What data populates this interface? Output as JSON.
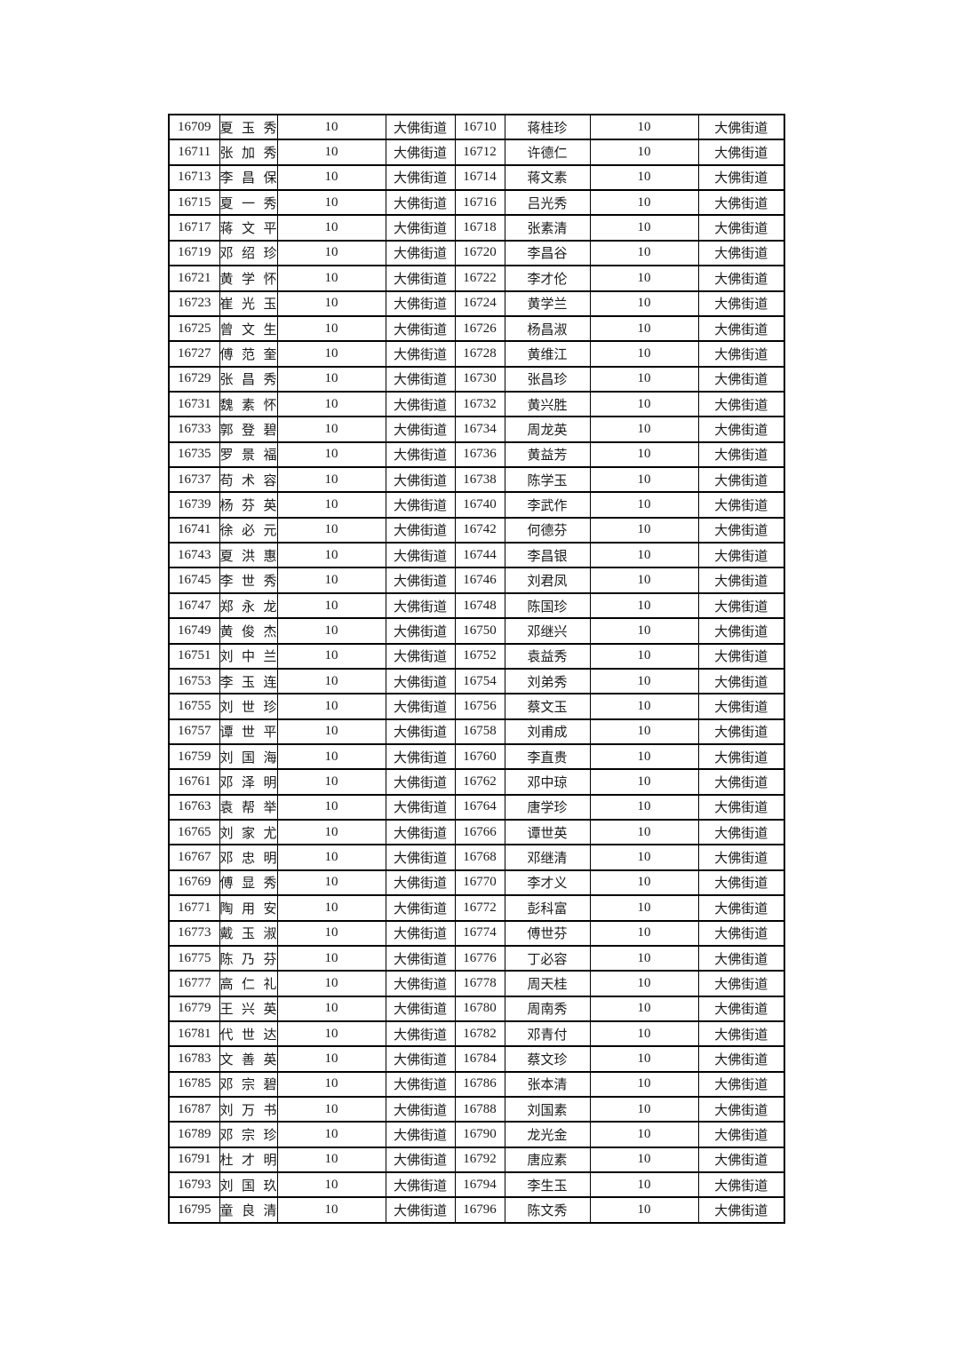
{
  "page": {
    "background_color": "#ffffff",
    "text_color": "#1b1b1b",
    "border_color": "#000000"
  },
  "table": {
    "rows": [
      [
        "16709",
        "夏玉秀",
        "10",
        "大佛街道",
        "16710",
        "蒋桂珍",
        "10",
        "大佛街道"
      ],
      [
        "16711",
        "张加秀",
        "10",
        "大佛街道",
        "16712",
        "许德仁",
        "10",
        "大佛街道"
      ],
      [
        "16713",
        "李昌保",
        "10",
        "大佛街道",
        "16714",
        "蒋文素",
        "10",
        "大佛街道"
      ],
      [
        "16715",
        "夏一秀",
        "10",
        "大佛街道",
        "16716",
        "吕光秀",
        "10",
        "大佛街道"
      ],
      [
        "16717",
        "蒋文平",
        "10",
        "大佛街道",
        "16718",
        "张素清",
        "10",
        "大佛街道"
      ],
      [
        "16719",
        "邓绍珍",
        "10",
        "大佛街道",
        "16720",
        "李昌谷",
        "10",
        "大佛街道"
      ],
      [
        "16721",
        "黄学怀",
        "10",
        "大佛街道",
        "16722",
        "李才伦",
        "10",
        "大佛街道"
      ],
      [
        "16723",
        "崔光玉",
        "10",
        "大佛街道",
        "16724",
        "黄学兰",
        "10",
        "大佛街道"
      ],
      [
        "16725",
        "曾文生",
        "10",
        "大佛街道",
        "16726",
        "杨昌淑",
        "10",
        "大佛街道"
      ],
      [
        "16727",
        "傅范奎",
        "10",
        "大佛街道",
        "16728",
        "黄维江",
        "10",
        "大佛街道"
      ],
      [
        "16729",
        "张昌秀",
        "10",
        "大佛街道",
        "16730",
        "张昌珍",
        "10",
        "大佛街道"
      ],
      [
        "16731",
        "魏素怀",
        "10",
        "大佛街道",
        "16732",
        "黄兴胜",
        "10",
        "大佛街道"
      ],
      [
        "16733",
        "郭登碧",
        "10",
        "大佛街道",
        "16734",
        "周龙英",
        "10",
        "大佛街道"
      ],
      [
        "16735",
        "罗景福",
        "10",
        "大佛街道",
        "16736",
        "黄益芳",
        "10",
        "大佛街道"
      ],
      [
        "16737",
        "苟术容",
        "10",
        "大佛街道",
        "16738",
        "陈学玉",
        "10",
        "大佛街道"
      ],
      [
        "16739",
        "杨芬英",
        "10",
        "大佛街道",
        "16740",
        "李武作",
        "10",
        "大佛街道"
      ],
      [
        "16741",
        "徐必元",
        "10",
        "大佛街道",
        "16742",
        "何德芬",
        "10",
        "大佛街道"
      ],
      [
        "16743",
        "夏洪惠",
        "10",
        "大佛街道",
        "16744",
        "李昌银",
        "10",
        "大佛街道"
      ],
      [
        "16745",
        "李世秀",
        "10",
        "大佛街道",
        "16746",
        "刘君凤",
        "10",
        "大佛街道"
      ],
      [
        "16747",
        "郑永龙",
        "10",
        "大佛街道",
        "16748",
        "陈国珍",
        "10",
        "大佛街道"
      ],
      [
        "16749",
        "黄俊杰",
        "10",
        "大佛街道",
        "16750",
        "邓继兴",
        "10",
        "大佛街道"
      ],
      [
        "16751",
        "刘中兰",
        "10",
        "大佛街道",
        "16752",
        "袁益秀",
        "10",
        "大佛街道"
      ],
      [
        "16753",
        "李玉连",
        "10",
        "大佛街道",
        "16754",
        "刘弟秀",
        "10",
        "大佛街道"
      ],
      [
        "16755",
        "刘世珍",
        "10",
        "大佛街道",
        "16756",
        "蔡文玉",
        "10",
        "大佛街道"
      ],
      [
        "16757",
        "谭世平",
        "10",
        "大佛街道",
        "16758",
        "刘甫成",
        "10",
        "大佛街道"
      ],
      [
        "16759",
        "刘国海",
        "10",
        "大佛街道",
        "16760",
        "李直贵",
        "10",
        "大佛街道"
      ],
      [
        "16761",
        "邓泽明",
        "10",
        "大佛街道",
        "16762",
        "邓中琼",
        "10",
        "大佛街道"
      ],
      [
        "16763",
        "袁帮举",
        "10",
        "大佛街道",
        "16764",
        "唐学珍",
        "10",
        "大佛街道"
      ],
      [
        "16765",
        "刘家尤",
        "10",
        "大佛街道",
        "16766",
        "谭世英",
        "10",
        "大佛街道"
      ],
      [
        "16767",
        "邓忠明",
        "10",
        "大佛街道",
        "16768",
        "邓继清",
        "10",
        "大佛街道"
      ],
      [
        "16769",
        "傅显秀",
        "10",
        "大佛街道",
        "16770",
        "李才义",
        "10",
        "大佛街道"
      ],
      [
        "16771",
        "陶用安",
        "10",
        "大佛街道",
        "16772",
        "彭科富",
        "10",
        "大佛街道"
      ],
      [
        "16773",
        "戴玉淑",
        "10",
        "大佛街道",
        "16774",
        "傅世芬",
        "10",
        "大佛街道"
      ],
      [
        "16775",
        "陈乃芬",
        "10",
        "大佛街道",
        "16776",
        "丁必容",
        "10",
        "大佛街道"
      ],
      [
        "16777",
        "高仁礼",
        "10",
        "大佛街道",
        "16778",
        "周天桂",
        "10",
        "大佛街道"
      ],
      [
        "16779",
        "王兴英",
        "10",
        "大佛街道",
        "16780",
        "周南秀",
        "10",
        "大佛街道"
      ],
      [
        "16781",
        "代世达",
        "10",
        "大佛街道",
        "16782",
        "邓青付",
        "10",
        "大佛街道"
      ],
      [
        "16783",
        "文善英",
        "10",
        "大佛街道",
        "16784",
        "蔡文珍",
        "10",
        "大佛街道"
      ],
      [
        "16785",
        "邓宗碧",
        "10",
        "大佛街道",
        "16786",
        "张本清",
        "10",
        "大佛街道"
      ],
      [
        "16787",
        "刘万书",
        "10",
        "大佛街道",
        "16788",
        "刘国素",
        "10",
        "大佛街道"
      ],
      [
        "16789",
        "邓宗珍",
        "10",
        "大佛街道",
        "16790",
        "龙光金",
        "10",
        "大佛街道"
      ],
      [
        "16791",
        "杜才明",
        "10",
        "大佛街道",
        "16792",
        "唐应素",
        "10",
        "大佛街道"
      ],
      [
        "16793",
        "刘国玖",
        "10",
        "大佛街道",
        "16794",
        "李生玉",
        "10",
        "大佛街道"
      ],
      [
        "16795",
        "童良清",
        "10",
        "大佛街道",
        "16796",
        "陈文秀",
        "10",
        "大佛街道"
      ]
    ]
  }
}
